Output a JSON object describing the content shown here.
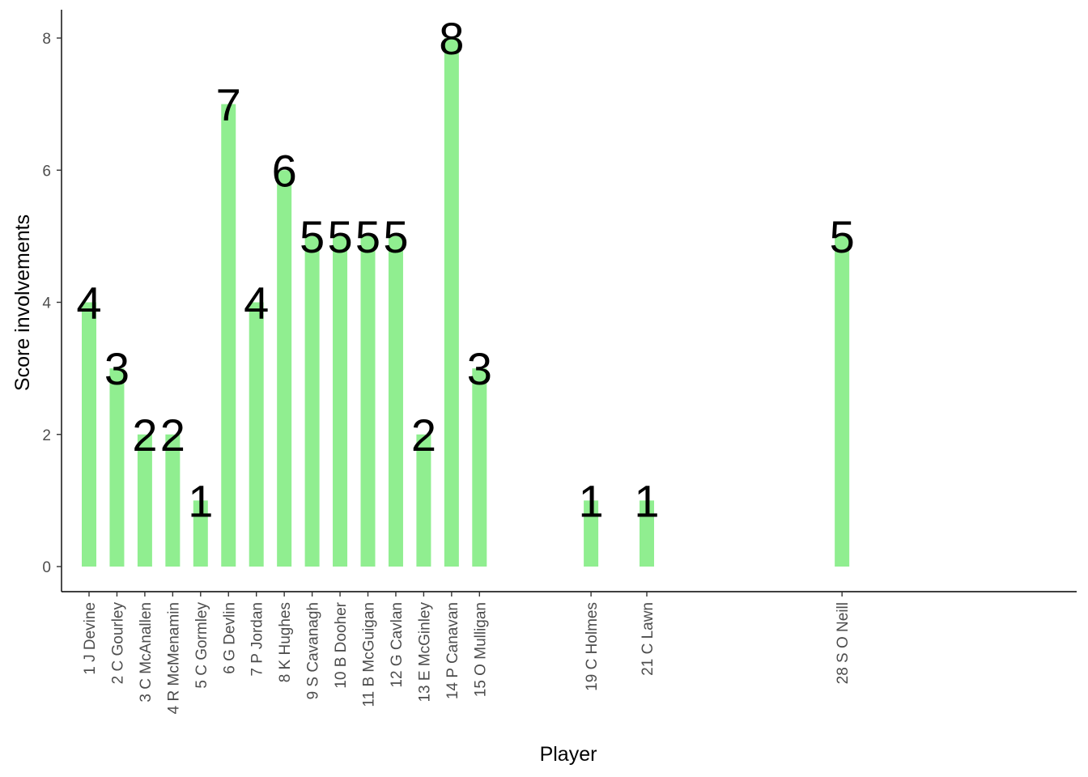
{
  "chart_data": {
    "type": "bar",
    "title": "",
    "xlabel": "Player",
    "ylabel": "Score involvements",
    "ylim": [
      0,
      8
    ],
    "yticks": [
      0,
      2,
      4,
      6,
      8
    ],
    "bar_color": "#90EE90",
    "grid": false,
    "legend": "none",
    "x_numeric_positions": [
      1,
      2,
      3,
      4,
      5,
      6,
      7,
      8,
      9,
      10,
      11,
      12,
      13,
      14,
      15,
      19,
      21,
      28
    ],
    "categories": [
      "1 J Devine",
      "2 C Gourley",
      "3 C McAnallen",
      "4 R McMenamin",
      "5 C Gormley",
      "6 G Devlin",
      "7 P Jordan",
      "8 K Hughes",
      "9 S Cavanagh",
      "10 B Dooher",
      "11 B McGuigan",
      "12 G Cavlan",
      "13 E McGinley",
      "14 P Canavan",
      "15 O Mulligan",
      "19 C Holmes",
      "21 C Lawn",
      "28 S O Neill"
    ],
    "values": [
      4,
      3,
      2,
      2,
      1,
      7,
      4,
      6,
      5,
      5,
      5,
      5,
      2,
      8,
      3,
      1,
      1,
      5
    ]
  }
}
